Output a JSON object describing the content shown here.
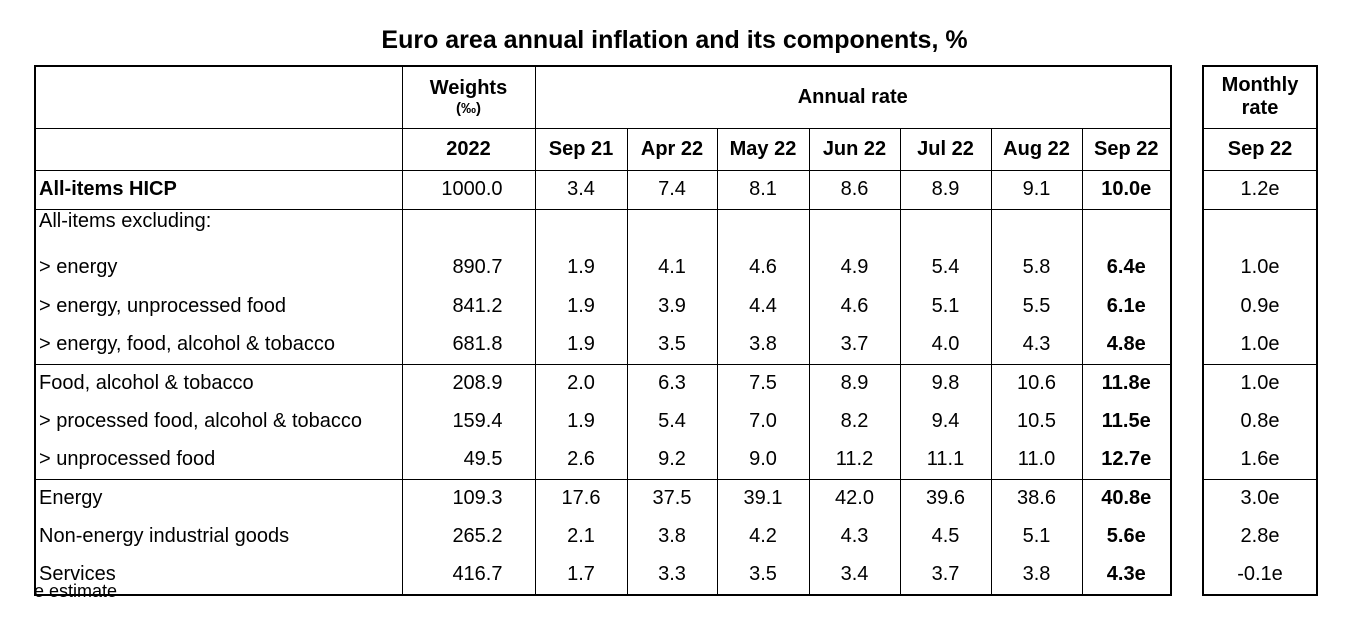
{
  "title": "Euro area annual inflation and its components, %",
  "headers": {
    "weights": "Weights",
    "weights_unit": "(‰)",
    "annual_rate": "Annual rate",
    "monthly_line1": "Monthly",
    "monthly_line2": "rate",
    "weight_year": "2022",
    "months": [
      "Sep 21",
      "Apr 22",
      "May 22",
      "Jun 22",
      "Jul 22",
      "Aug 22",
      "Sep 22"
    ],
    "monthly_month": "Sep 22"
  },
  "rows": [
    {
      "label": "All-items HICP",
      "weight": "1000.0",
      "values": [
        "3.4",
        "7.4",
        "8.1",
        "8.6",
        "8.9",
        "9.1",
        "10.0e"
      ],
      "monthly": "1.2e"
    },
    {
      "label": "All-items excluding:"
    },
    {
      "label": "> energy",
      "weight": "890.7",
      "values": [
        "1.9",
        "4.1",
        "4.6",
        "4.9",
        "5.4",
        "5.8",
        "6.4e"
      ],
      "monthly": "1.0e"
    },
    {
      "label": "> energy, unprocessed food",
      "weight": "841.2",
      "values": [
        "1.9",
        "3.9",
        "4.4",
        "4.6",
        "5.1",
        "5.5",
        "6.1e"
      ],
      "monthly": "0.9e"
    },
    {
      "label": "> energy, food, alcohol & tobacco",
      "weight": "681.8",
      "values": [
        "1.9",
        "3.5",
        "3.8",
        "3.7",
        "4.0",
        "4.3",
        "4.8e"
      ],
      "monthly": "1.0e"
    },
    {
      "label": "Food, alcohol & tobacco",
      "weight": "208.9",
      "values": [
        "2.0",
        "6.3",
        "7.5",
        "8.9",
        "9.8",
        "10.6",
        "11.8e"
      ],
      "monthly": "1.0e"
    },
    {
      "label": "> processed food, alcohol & tobacco",
      "weight": "159.4",
      "values": [
        "1.9",
        "5.4",
        "7.0",
        "8.2",
        "9.4",
        "10.5",
        "11.5e"
      ],
      "monthly": "0.8e"
    },
    {
      "label": "> unprocessed food",
      "weight": "49.5",
      "values": [
        "2.6",
        "9.2",
        "9.0",
        "11.2",
        "11.1",
        "11.0",
        "12.7e"
      ],
      "monthly": "1.6e"
    },
    {
      "label": "Energy",
      "weight": "109.3",
      "values": [
        "17.6",
        "37.5",
        "39.1",
        "42.0",
        "39.6",
        "38.6",
        "40.8e"
      ],
      "monthly": "3.0e"
    },
    {
      "label": "Non-energy industrial goods",
      "weight": "265.2",
      "values": [
        "2.1",
        "3.8",
        "4.2",
        "4.3",
        "4.5",
        "5.1",
        "5.6e"
      ],
      "monthly": "2.8e"
    },
    {
      "label": "Services",
      "weight": "416.7",
      "values": [
        "1.7",
        "3.3",
        "3.5",
        "3.4",
        "3.7",
        "3.8",
        "4.3e"
      ],
      "monthly": "-0.1e"
    }
  ],
  "footnote": "e estimate"
}
